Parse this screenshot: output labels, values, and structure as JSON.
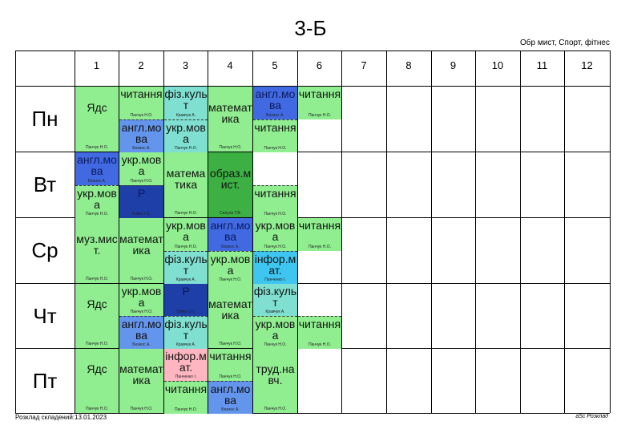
{
  "header": {
    "title": "3-Б",
    "subtitle": "Обр мист, Спорт, фітнес"
  },
  "footer": {
    "left": "Розклад складений:13.01.2023",
    "right": "aSc Розклад"
  },
  "columns": [
    "1",
    "2",
    "3",
    "4",
    "5",
    "6",
    "7",
    "8",
    "9",
    "10",
    "11",
    "12"
  ],
  "days": [
    "Пн",
    "Вт",
    "Ср",
    "Чт",
    "Пт"
  ],
  "colors": {
    "green": "#90ee90",
    "blue": "#4169e1",
    "navy": "#1f3fa8",
    "cyan": "#3fe0c8",
    "teal": "#7fdfd0",
    "darkgreen": "#3cb043",
    "pink": "#ffb6c1",
    "cornflower": "#6495ed",
    "sky": "#3ec6f0"
  },
  "cells": {
    "pn1": {
      "subject": "Ядс",
      "teacher": "Панчук Н.О."
    },
    "pn2a": {
      "subject": "читання",
      "teacher": "Панчук Н.О."
    },
    "pn2b": {
      "subject": "англ.мова",
      "teacher": "Безнос А."
    },
    "pn3a": {
      "subject": "фіз.культ",
      "teacher": "Кравчук А."
    },
    "pn3b": {
      "subject": "укр.мова",
      "teacher": "Панчук Н.О."
    },
    "pn4": {
      "subject": "математика",
      "teacher": "Панчук Н.О."
    },
    "pn5a": {
      "subject": "англ.мова",
      "teacher": "Безнос А."
    },
    "pn5b": {
      "subject": "читання",
      "teacher": "Панчук Н.О."
    },
    "pn6a": {
      "subject": "читання",
      "teacher": "Панчук Н.О."
    },
    "vt1a": {
      "subject": "англ.мова",
      "teacher": "Безнос А."
    },
    "vt1b": {
      "subject": "укр.мова",
      "teacher": "Панчук Н.О."
    },
    "vt2a": {
      "subject": "укр.мова",
      "teacher": "Панчук Н.О."
    },
    "vt2b": {
      "subject": "Р",
      "teacher": "Бойко І.О."
    },
    "vt3": {
      "subject": "математика",
      "teacher": "Панчук Н.О."
    },
    "vt4": {
      "subject": "образ.мист.",
      "teacher": "Салуха Т.В."
    },
    "vt5b": {
      "subject": "читання",
      "teacher": "Панчук Н.О."
    },
    "sr1": {
      "subject": "муз.мист.",
      "teacher": "Панчук Н.О."
    },
    "sr2": {
      "subject": "математика",
      "teacher": "Панчук Н.О."
    },
    "sr3a": {
      "subject": "укр.мова",
      "teacher": "Панчук Н.О."
    },
    "sr3b": {
      "subject": "фіз.культ",
      "teacher": "Кравчук А."
    },
    "sr4a": {
      "subject": "англ.мова",
      "teacher": "Безнос А."
    },
    "sr4b": {
      "subject": "укр.мова",
      "teacher": "Панчук Н.О."
    },
    "sr5a": {
      "subject": "укр.мова",
      "teacher": "Панчук Н.О."
    },
    "sr5b": {
      "subject": "інфор.мат.",
      "teacher": "Панченко І."
    },
    "sr6a": {
      "subject": "читання",
      "teacher": "Панчук Н.О."
    },
    "ch1": {
      "subject": "Ядс",
      "teacher": "Панчук Н.О."
    },
    "ch2a": {
      "subject": "укр.мова",
      "teacher": "Панчук Н.О."
    },
    "ch2b": {
      "subject": "англ.мова",
      "teacher": "Безнос А."
    },
    "ch3a": {
      "subject": "Р",
      "teacher": "Бойко І.О."
    },
    "ch3b": {
      "subject": "фіз.культ",
      "teacher": "Кравчук А."
    },
    "ch4": {
      "subject": "математика",
      "teacher": "Панчук Н.О."
    },
    "ch5a": {
      "subject": "фіз.культ",
      "teacher": "Кравчук А."
    },
    "ch5b": {
      "subject": "укр.мова",
      "teacher": "Панчук Н.О."
    },
    "ch6b": {
      "subject": "читання",
      "teacher": "Панчук Н.О."
    },
    "pt1": {
      "subject": "Ядс",
      "teacher": "Панчук Н.О."
    },
    "pt2": {
      "subject": "математика",
      "teacher": "Панчук Н.О."
    },
    "pt3a": {
      "subject": "інфор.мат.",
      "teacher": "Панченко І."
    },
    "pt3b": {
      "subject": "читання",
      "teacher": "Панчук Н.О."
    },
    "pt4a": {
      "subject": "читання",
      "teacher": "Панчук Н.О."
    },
    "pt4b": {
      "subject": "англ.мова",
      "teacher": "Безнос А."
    },
    "pt5": {
      "subject": "труд.навч.",
      "teacher": "Панчук Н.О."
    }
  }
}
